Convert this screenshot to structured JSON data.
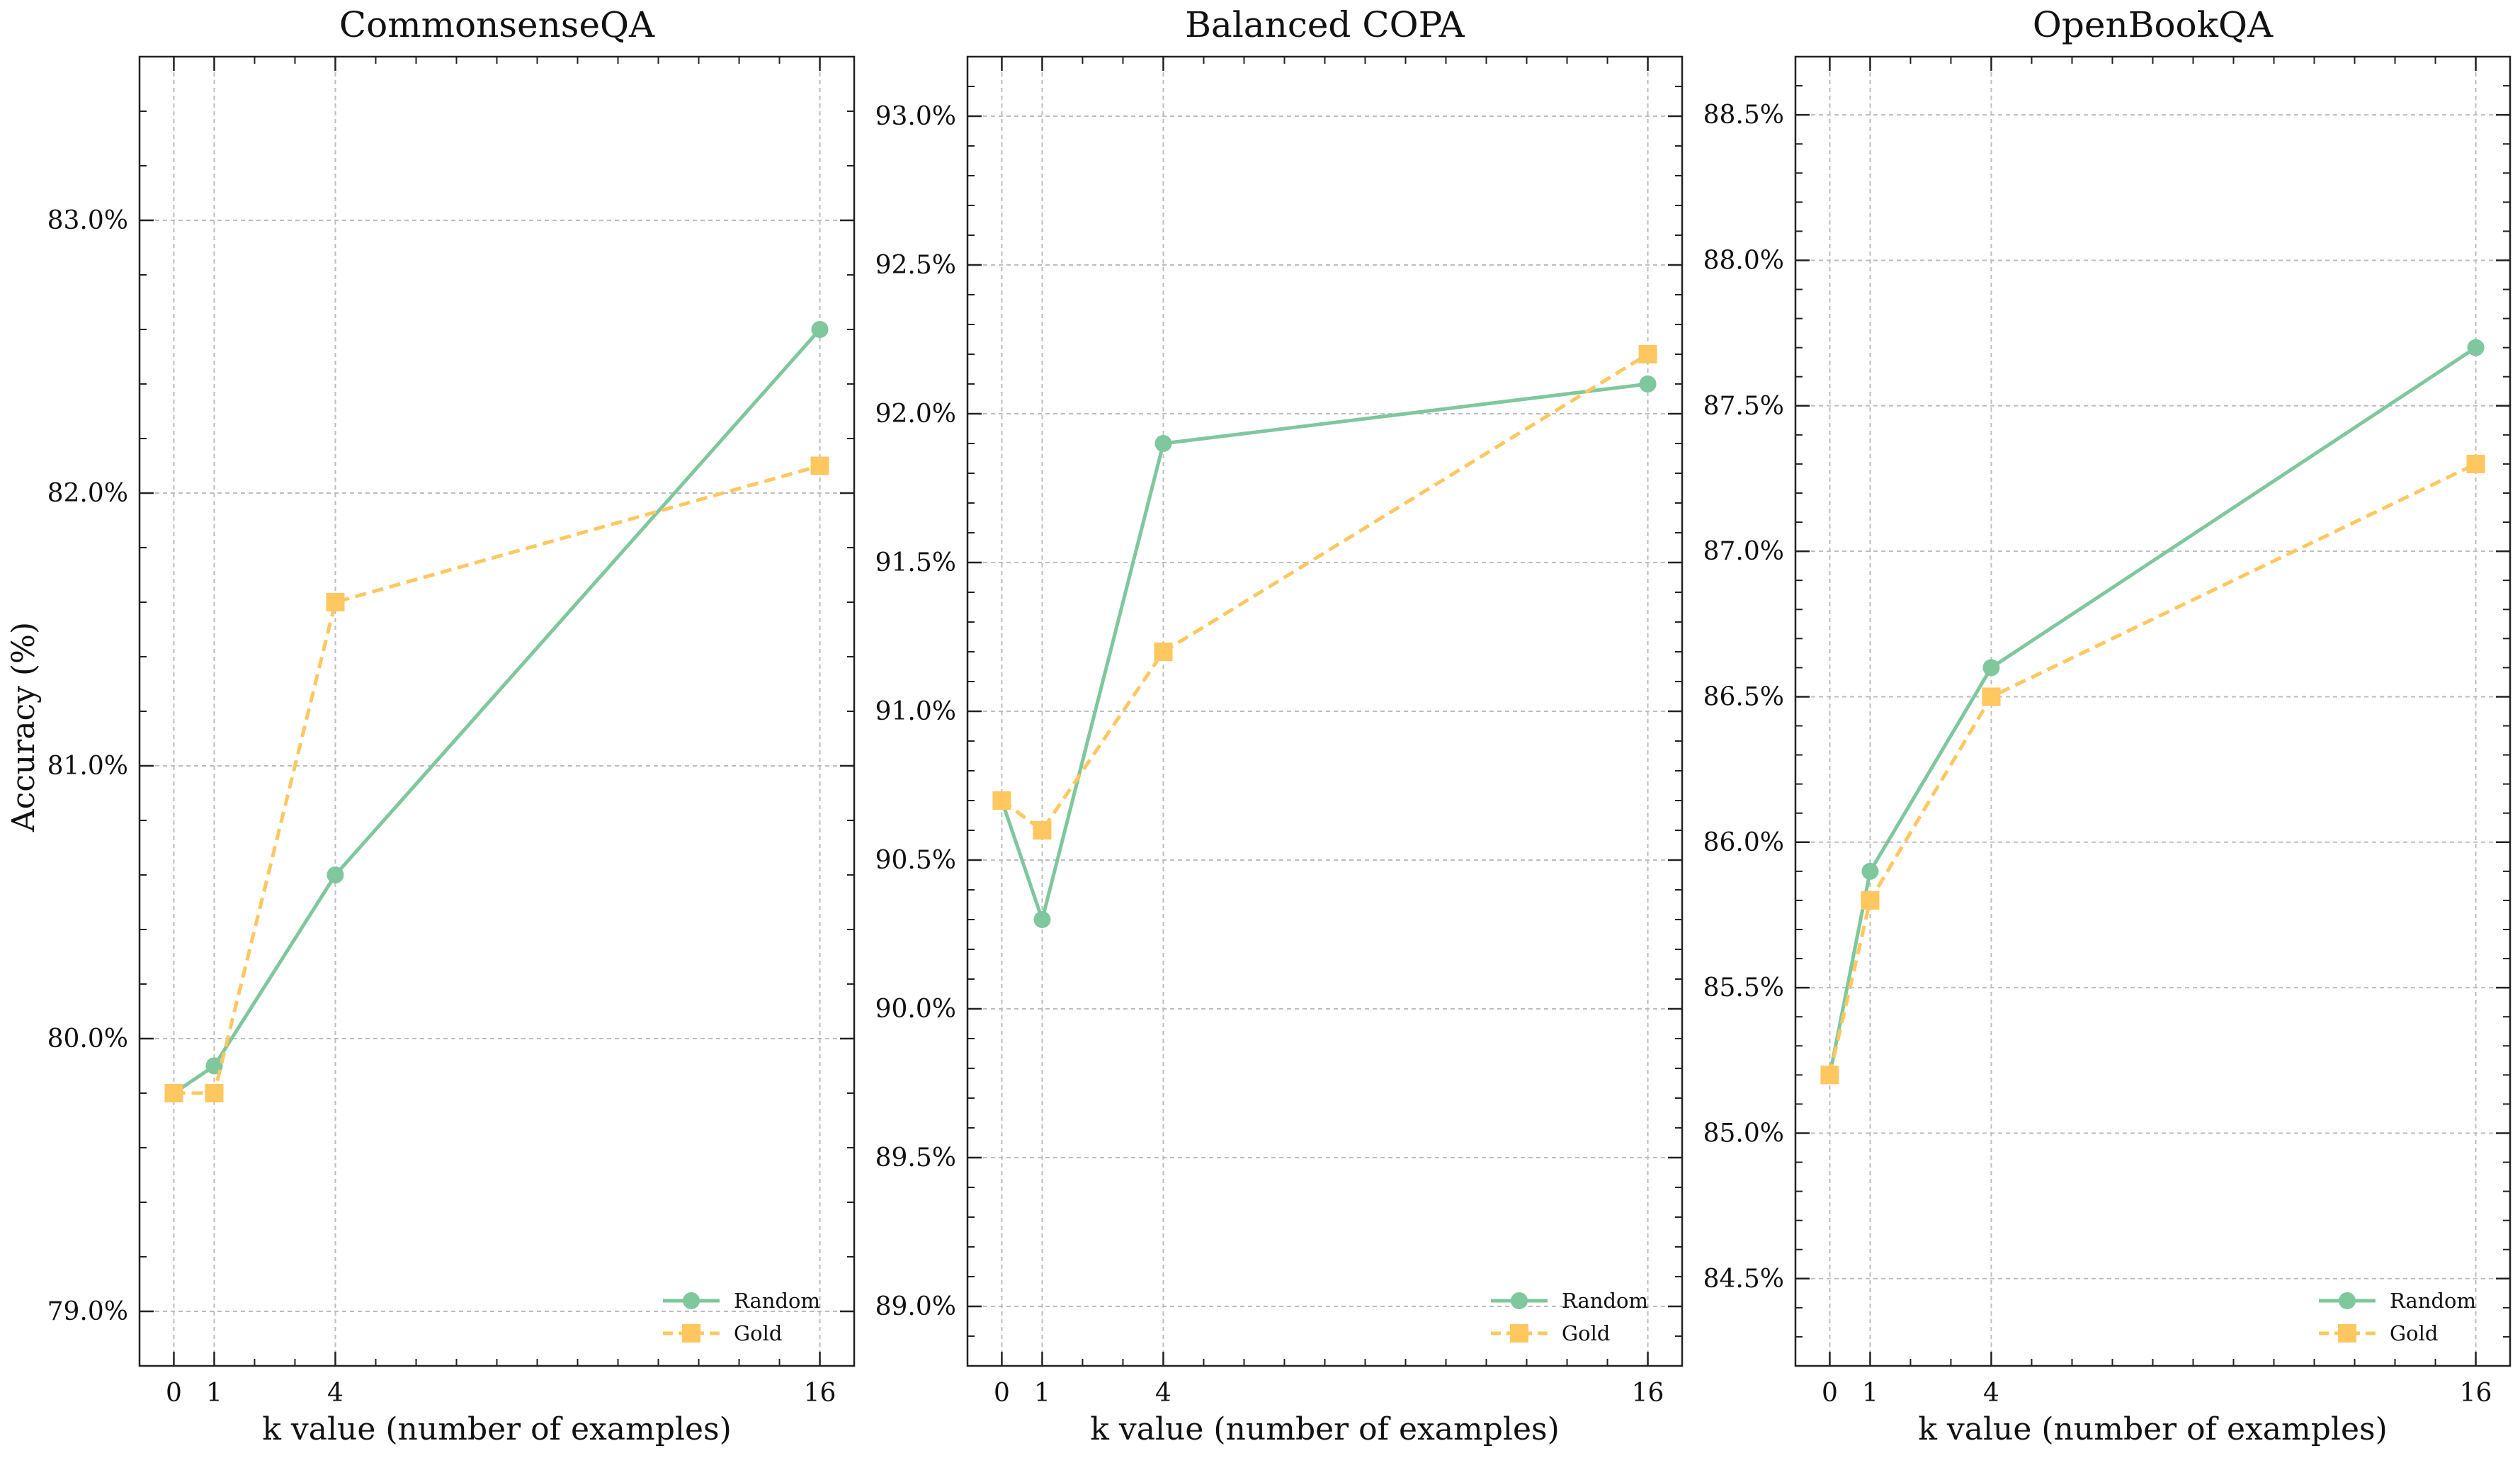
{
  "colors": {
    "random": "#7fc79c",
    "gold": "#fec75f",
    "grid": "#bdbdbd",
    "axis": "#222222"
  },
  "shared": {
    "xlabel": "k value (number of examples)",
    "ylabel": "Accuracy (%)"
  },
  "chart_data": [
    {
      "type": "line",
      "title": "CommonsenseQA",
      "xlabel": "k value (number of examples)",
      "ylabel": "Accuracy (%)",
      "x": [
        0,
        1,
        4,
        16
      ],
      "x_ticks": [
        "0",
        "1",
        "4",
        "16"
      ],
      "xlim": [
        -0.85,
        16.85
      ],
      "ylim": [
        78.8,
        83.6
      ],
      "y_ticks": [
        79.0,
        80.0,
        81.0,
        82.0,
        83.0
      ],
      "y_tick_labels": [
        "79.0%",
        "80.0%",
        "81.0%",
        "82.0%",
        "83.0%"
      ],
      "y_minor_step": 0.2,
      "grid": true,
      "legend": "lower-right",
      "series": [
        {
          "name": "Random",
          "style": "solid",
          "marker": "circle",
          "values": [
            79.8,
            79.9,
            80.6,
            82.6
          ]
        },
        {
          "name": "Gold",
          "style": "dashed",
          "marker": "square",
          "values": [
            79.8,
            79.8,
            81.6,
            82.1
          ]
        }
      ]
    },
    {
      "type": "line",
      "title": "Balanced COPA",
      "xlabel": "k value (number of examples)",
      "ylabel": "",
      "x": [
        0,
        1,
        4,
        16
      ],
      "x_ticks": [
        "0",
        "1",
        "4",
        "16"
      ],
      "xlim": [
        -0.85,
        16.85
      ],
      "ylim": [
        88.8,
        93.2
      ],
      "y_ticks": [
        89.0,
        89.5,
        90.0,
        90.5,
        91.0,
        91.5,
        92.0,
        92.5,
        93.0
      ],
      "y_tick_labels": [
        "89.0%",
        "89.5%",
        "90.0%",
        "90.5%",
        "91.0%",
        "91.5%",
        "92.0%",
        "92.5%",
        "93.0%"
      ],
      "y_minor_step": 0.1,
      "grid": true,
      "legend": "lower-right",
      "series": [
        {
          "name": "Random",
          "style": "solid",
          "marker": "circle",
          "values": [
            90.7,
            90.3,
            91.9,
            92.1
          ]
        },
        {
          "name": "Gold",
          "style": "dashed",
          "marker": "square",
          "values": [
            90.7,
            90.6,
            91.2,
            92.2
          ]
        }
      ]
    },
    {
      "type": "line",
      "title": "OpenBookQA",
      "xlabel": "k value (number of examples)",
      "ylabel": "",
      "x": [
        0,
        1,
        4,
        16
      ],
      "x_ticks": [
        "0",
        "1",
        "4",
        "16"
      ],
      "xlim": [
        -0.85,
        16.85
      ],
      "ylim": [
        84.2,
        88.7
      ],
      "y_ticks": [
        84.5,
        85.0,
        85.5,
        86.0,
        86.5,
        87.0,
        87.5,
        88.0,
        88.5
      ],
      "y_tick_labels": [
        "84.5%",
        "85.0%",
        "85.5%",
        "86.0%",
        "86.5%",
        "87.0%",
        "87.5%",
        "88.0%",
        "88.5%"
      ],
      "y_minor_step": 0.1,
      "grid": true,
      "legend": "lower-right",
      "series": [
        {
          "name": "Random",
          "style": "solid",
          "marker": "circle",
          "values": [
            85.2,
            85.9,
            86.6,
            87.7
          ]
        },
        {
          "name": "Gold",
          "style": "dashed",
          "marker": "square",
          "values": [
            85.2,
            85.8,
            86.5,
            87.3
          ]
        }
      ]
    }
  ]
}
